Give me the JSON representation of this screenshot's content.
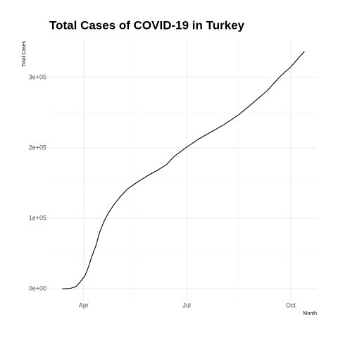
{
  "chart_data": {
    "type": "line",
    "title": "Total Cases of COVID-19 in Turkey",
    "x_label": "Month",
    "y_label": "Total Cases",
    "x": [
      73,
      80,
      85,
      88,
      93,
      96,
      99,
      103,
      106,
      110,
      114,
      119,
      125,
      131,
      139,
      150,
      157,
      165,
      172,
      183,
      194,
      205,
      216,
      229,
      241,
      254,
      266,
      275,
      287
    ],
    "series": [
      {
        "name": "Total Cases",
        "color": "#000000",
        "values": [
          0,
          500,
          3000,
          8000,
          18000,
          30000,
          45000,
          62000,
          80000,
          96000,
          108000,
          120000,
          132000,
          142000,
          151000,
          162000,
          168000,
          176000,
          188000,
          201000,
          213000,
          223000,
          233000,
          247000,
          263000,
          281000,
          302000,
          315000,
          337000
        ]
      }
    ],
    "xlim": [
      61,
      298
    ],
    "xticks": [
      {
        "value": 92,
        "label": "Apr"
      },
      {
        "value": 183,
        "label": "Jul"
      },
      {
        "value": 275,
        "label": "Oct"
      }
    ],
    "x_minor_grid": [
      137.5,
      229
    ],
    "ylim": [
      -16850,
      353850
    ],
    "yticks": [
      {
        "value": 0,
        "label": "0e+00"
      },
      {
        "value": 100000,
        "label": "1e+05"
      },
      {
        "value": 200000,
        "label": "2e+05"
      },
      {
        "value": 300000,
        "label": "3e+05"
      }
    ],
    "y_minor_grid": [
      50000,
      150000,
      250000
    ],
    "grid": true
  }
}
